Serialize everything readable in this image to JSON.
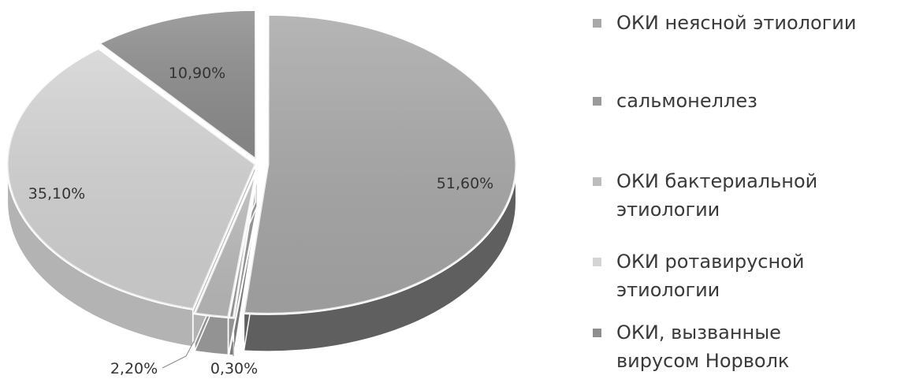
{
  "chart_data": {
    "type": "pie",
    "style": "3d-exploded",
    "legend_position": "right",
    "slices": [
      {
        "name": "ОКИ неясной этиологии",
        "value": 51.6,
        "label": "51,60%",
        "color": "#a9a9a9",
        "side_color": "#5f5f5f"
      },
      {
        "name": "сальмонеллез",
        "value": 0.3,
        "label": "0,30%",
        "color": "#9a9a9a",
        "side_color": "#7b7b7b"
      },
      {
        "name": "ОКИ бактериальной этиологии",
        "value": 2.2,
        "label": "2,20%",
        "color": "#bcbcbc",
        "side_color": "#939393"
      },
      {
        "name": "ОКИ ротавирусной этиологии",
        "value": 35.1,
        "label": "35,10%",
        "color": "#d4d4d4",
        "side_color": "#b3b3b3"
      },
      {
        "name": "ОКИ, вызванные вирусом Норволк",
        "value": 10.9,
        "label": "10,90%",
        "color": "#8e8e8e",
        "side_color": "#6c6c6c"
      }
    ]
  },
  "legend": {
    "items": [
      {
        "lines": [
          "ОКИ неясной этиологии"
        ],
        "color": "#a9a9a9"
      },
      {
        "lines": [
          "сальмонеллез"
        ],
        "color": "#9a9a9a"
      },
      {
        "lines": [
          "ОКИ бактериальной",
          "этиологии"
        ],
        "color": "#bcbcbc"
      },
      {
        "lines": [
          "ОКИ ротавирусной",
          "этиологии"
        ],
        "color": "#d4d4d4"
      },
      {
        "lines": [
          "ОКИ, вызванные",
          "вирусом Норволк"
        ],
        "color": "#8e8e8e"
      }
    ]
  }
}
